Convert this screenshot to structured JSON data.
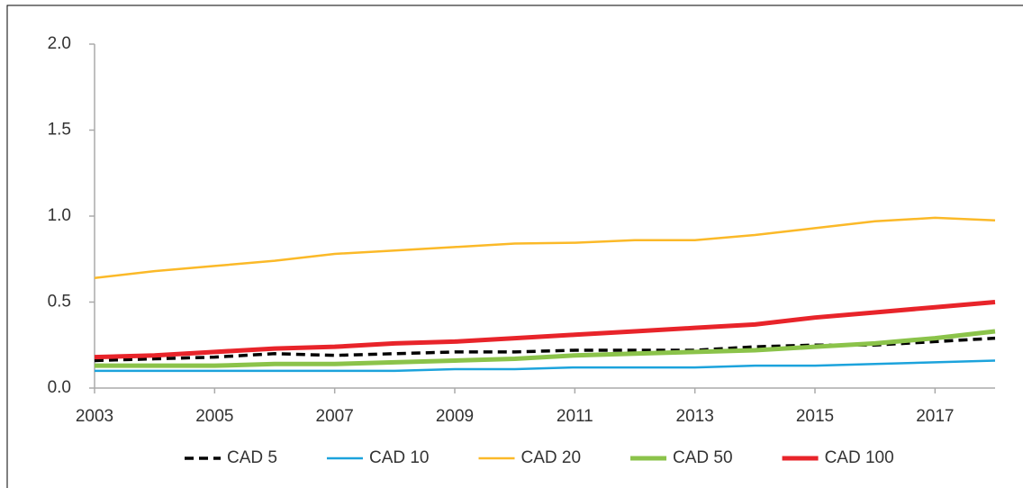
{
  "chart_data": {
    "type": "line",
    "x": [
      2003,
      2004,
      2005,
      2006,
      2007,
      2008,
      2009,
      2010,
      2011,
      2012,
      2013,
      2014,
      2015,
      2016,
      2017,
      2018
    ],
    "xlim": [
      2003,
      2018
    ],
    "xticks": [
      2003,
      2005,
      2007,
      2009,
      2011,
      2013,
      2015,
      2017
    ],
    "ylim": [
      0,
      2
    ],
    "yticks": [
      {
        "value": 0,
        "label": "0.0"
      },
      0.5,
      {
        "value": 1,
        "label": "1.0"
      },
      1.5,
      {
        "value": 2,
        "label": "2.0"
      }
    ],
    "legend": "bottom",
    "series": [
      {
        "name": "CAD 5",
        "color": "#000000",
        "style": "dashed",
        "linewidth": 3.5,
        "values": [
          0.16,
          0.17,
          0.18,
          0.2,
          0.19,
          0.2,
          0.21,
          0.21,
          0.22,
          0.22,
          0.22,
          0.24,
          0.25,
          0.25,
          0.27,
          0.29
        ]
      },
      {
        "name": "CAD 10",
        "color": "#1ca3dc",
        "style": "solid",
        "linewidth": 2.5,
        "values": [
          0.1,
          0.1,
          0.1,
          0.1,
          0.1,
          0.1,
          0.11,
          0.11,
          0.12,
          0.12,
          0.12,
          0.13,
          0.13,
          0.14,
          0.15,
          0.16
        ]
      },
      {
        "name": "CAD 20",
        "color": "#fbb928",
        "style": "solid",
        "linewidth": 2.5,
        "values": [
          0.64,
          0.68,
          0.71,
          0.74,
          0.78,
          0.8,
          0.82,
          0.84,
          0.845,
          0.86,
          0.86,
          0.89,
          0.93,
          0.97,
          0.99,
          0.975
        ]
      },
      {
        "name": "CAD 50",
        "color": "#8bc34a",
        "style": "solid",
        "linewidth": 5,
        "values": [
          0.13,
          0.13,
          0.13,
          0.14,
          0.14,
          0.15,
          0.16,
          0.17,
          0.19,
          0.2,
          0.21,
          0.22,
          0.24,
          0.26,
          0.29,
          0.33
        ]
      },
      {
        "name": "CAD 100",
        "color": "#e8242a",
        "style": "solid",
        "linewidth": 5,
        "values": [
          0.18,
          0.19,
          0.21,
          0.23,
          0.24,
          0.26,
          0.27,
          0.29,
          0.31,
          0.33,
          0.35,
          0.37,
          0.41,
          0.44,
          0.47,
          0.5
        ]
      }
    ]
  }
}
